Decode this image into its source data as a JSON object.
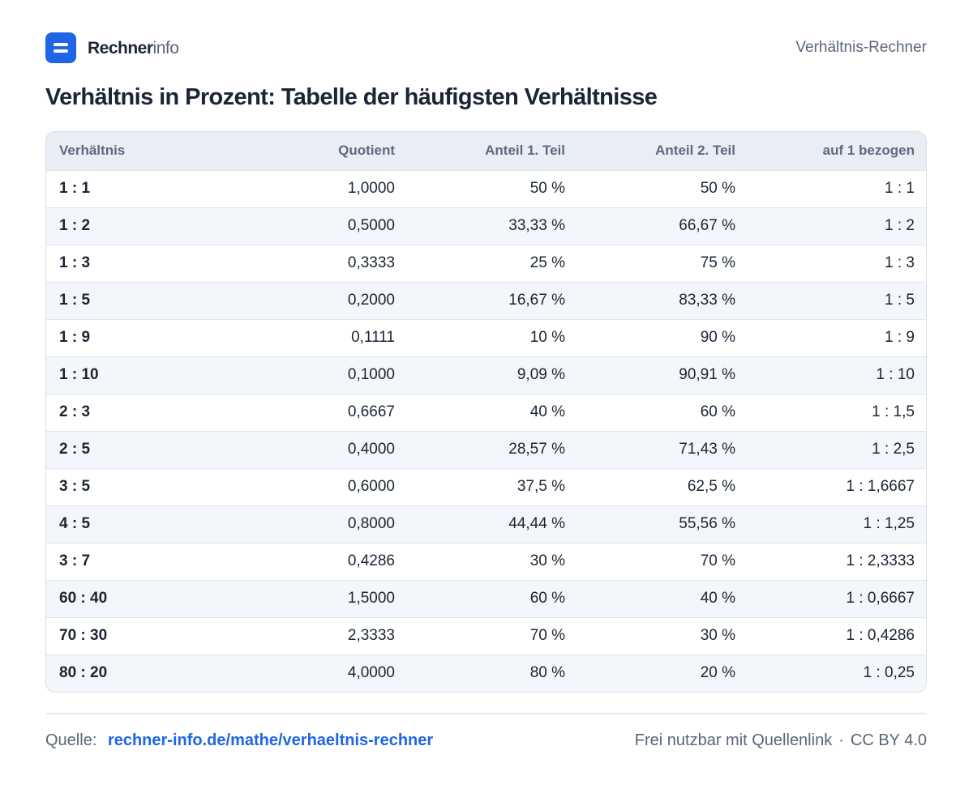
{
  "brand": {
    "name_strong": "Rechner",
    "name_light": "info",
    "logo_color": "#1f66e6"
  },
  "header": {
    "right_label": "Verhältnis-Rechner"
  },
  "title": "Verhältnis in Prozent: Tabelle der häufigsten Verhältnisse",
  "table": {
    "headers": [
      "Verhältnis",
      "Quotient",
      "Anteil 1. Teil",
      "Anteil 2. Teil",
      "auf 1 bezogen"
    ],
    "rows": [
      [
        "1 : 1",
        "1,0000",
        "50 %",
        "50 %",
        "1 : 1"
      ],
      [
        "1 : 2",
        "0,5000",
        "33,33 %",
        "66,67 %",
        "1 : 2"
      ],
      [
        "1 : 3",
        "0,3333",
        "25 %",
        "75 %",
        "1 : 3"
      ],
      [
        "1 : 5",
        "0,2000",
        "16,67 %",
        "83,33 %",
        "1 : 5"
      ],
      [
        "1 : 9",
        "0,1111",
        "10 %",
        "90 %",
        "1 : 9"
      ],
      [
        "1 : 10",
        "0,1000",
        "9,09 %",
        "90,91 %",
        "1 : 10"
      ],
      [
        "2 : 3",
        "0,6667",
        "40 %",
        "60 %",
        "1 : 1,5"
      ],
      [
        "2 : 5",
        "0,4000",
        "28,57 %",
        "71,43 %",
        "1 : 2,5"
      ],
      [
        "3 : 5",
        "0,6000",
        "37,5 %",
        "62,5 %",
        "1 : 1,6667"
      ],
      [
        "4 : 5",
        "0,8000",
        "44,44 %",
        "55,56 %",
        "1 : 1,25"
      ],
      [
        "3 : 7",
        "0,4286",
        "30 %",
        "70 %",
        "1 : 2,3333"
      ],
      [
        "60 : 40",
        "1,5000",
        "60 %",
        "40 %",
        "1 : 0,6667"
      ],
      [
        "70 : 30",
        "2,3333",
        "70 %",
        "30 %",
        "1 : 0,4286"
      ],
      [
        "80 : 20",
        "4,0000",
        "80 %",
        "20 %",
        "1 : 0,25"
      ]
    ]
  },
  "footer": {
    "source_label": "Quelle:",
    "source_link": "rechner-info.de/mathe/verhaeltnis-rechner",
    "license_text": "Frei nutzbar mit Quellenlink",
    "separator": "·",
    "license_code": "CC BY 4.0"
  }
}
